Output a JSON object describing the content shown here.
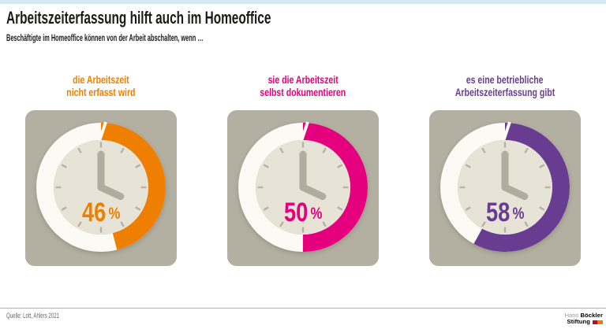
{
  "chart_data": {
    "type": "donut",
    "title": "Arbeitszeiterfassung hilft auch im Homeoffice",
    "subtitle": "Beschäftigte im Homeoffice können von der Arbeit abschalten, wenn …",
    "unit": "%",
    "value_range": [
      0,
      100
    ],
    "legend": "none",
    "grid": "off",
    "categories": [
      "die Arbeitszeit nicht erfasst wird",
      "sie die Arbeitszeit selbst dokumentieren",
      "es eine betriebliche Arbeitszeiterfassung gibt"
    ],
    "values": [
      46,
      50,
      58
    ],
    "series": [
      {
        "label_lines": [
          "die Arbeitszeit",
          "nicht erfasst wird"
        ],
        "value": 46,
        "color": "#ee7f00"
      },
      {
        "label_lines": [
          "sie die Arbeitszeit",
          "selbst dokumentieren"
        ],
        "value": 50,
        "color": "#e5007d"
      },
      {
        "label_lines": [
          "es eine betriebliche",
          "Arbeitszeiterfassung gibt"
        ],
        "value": 58,
        "color": "#683c90"
      }
    ],
    "source": "Quelle: Lott, Ahlers 2021",
    "icon": "clock-icon"
  },
  "footer": {
    "logo": {
      "name_light": "Hans",
      "name_bold": "Böckler",
      "line2_bold": "Stiftung",
      "mark_colors": [
        "#be0a26",
        "#ef7c00"
      ]
    }
  }
}
